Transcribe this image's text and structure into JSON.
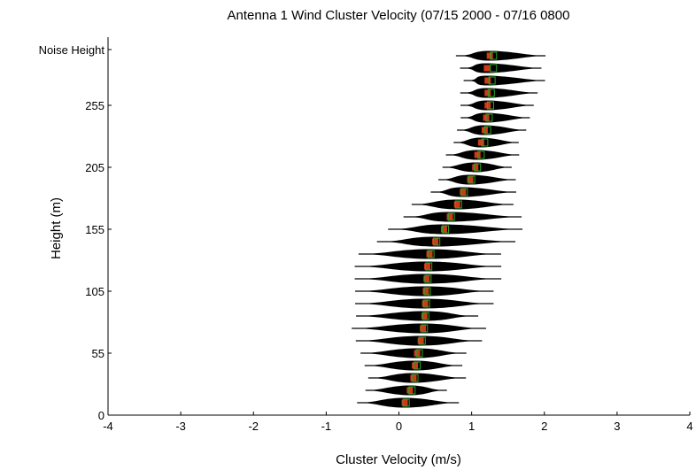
{
  "chart_data": {
    "type": "scatter",
    "title": "Antenna 1 Wind Cluster Velocity (07/15 2000 - 07/16 0800",
    "xlabel": "Cluster Velocity (m/s)",
    "ylabel": "Height (m)",
    "xlim": [
      -4,
      4
    ],
    "ylim": [
      0,
      305
    ],
    "x_ticks": [
      {
        "value": -4,
        "label": "-4"
      },
      {
        "value": -3,
        "label": "-3"
      },
      {
        "value": -2,
        "label": "-2"
      },
      {
        "value": -1,
        "label": "-1"
      },
      {
        "value": 0,
        "label": "0"
      },
      {
        "value": 1,
        "label": "1"
      },
      {
        "value": 2,
        "label": "2"
      },
      {
        "value": 3,
        "label": "3"
      },
      {
        "value": 4,
        "label": "4"
      }
    ],
    "y_ticks": [
      {
        "value": 0,
        "label": "0"
      },
      {
        "value": 50,
        "label": "55"
      },
      {
        "value": 100,
        "label": "105"
      },
      {
        "value": 150,
        "label": "155"
      },
      {
        "value": 200,
        "label": "205"
      },
      {
        "value": 250,
        "label": "255"
      },
      {
        "value": 295,
        "label": "Noise Height"
      }
    ],
    "grid": false,
    "colors": {
      "distribution": "#000000",
      "median_marker": "#cc3a1a",
      "mean_marker": "#22aa22"
    },
    "series": [
      {
        "heights": [
          10,
          20,
          30,
          40,
          50,
          60,
          70,
          80,
          90,
          100,
          110,
          120,
          130,
          140,
          150,
          160,
          170,
          180,
          190,
          200,
          210,
          220,
          230,
          240,
          250,
          260,
          270,
          280,
          290
        ],
        "median": [
          0.08,
          0.15,
          0.2,
          0.22,
          0.25,
          0.3,
          0.33,
          0.35,
          0.36,
          0.37,
          0.38,
          0.39,
          0.42,
          0.5,
          0.62,
          0.7,
          0.8,
          0.88,
          0.98,
          1.05,
          1.08,
          1.13,
          1.18,
          1.2,
          1.22,
          1.22,
          1.22,
          1.21,
          1.25
        ],
        "mean": [
          0.1,
          0.18,
          0.22,
          0.25,
          0.28,
          0.32,
          0.35,
          0.37,
          0.38,
          0.39,
          0.4,
          0.41,
          0.44,
          0.52,
          0.64,
          0.72,
          0.82,
          0.9,
          1.0,
          1.08,
          1.13,
          1.18,
          1.22,
          1.24,
          1.26,
          1.27,
          1.28,
          1.3,
          1.3
        ],
        "spread_min": [
          -0.5,
          -0.4,
          -0.35,
          -0.4,
          -0.45,
          -0.5,
          -0.55,
          -0.5,
          -0.5,
          -0.5,
          -0.5,
          -0.5,
          -0.45,
          -0.2,
          -0.05,
          0.15,
          0.25,
          0.5,
          0.6,
          0.65,
          0.7,
          0.8,
          0.85,
          0.9,
          0.9,
          0.9,
          0.95,
          0.9,
          0.85
        ],
        "spread_max": [
          0.75,
          0.6,
          0.85,
          0.8,
          0.85,
          1.05,
          1.1,
          1.0,
          1.2,
          1.2,
          1.3,
          1.3,
          1.3,
          1.5,
          1.6,
          1.6,
          1.5,
          1.55,
          1.55,
          1.5,
          1.6,
          1.6,
          1.7,
          1.75,
          1.8,
          1.85,
          1.95,
          1.9,
          1.95
        ]
      }
    ]
  }
}
